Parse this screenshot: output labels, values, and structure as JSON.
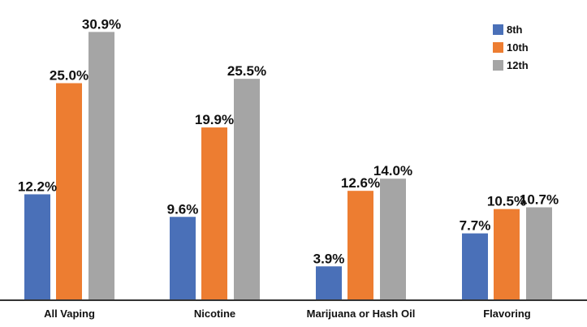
{
  "chart_data": {
    "type": "bar",
    "categories": [
      "All Vaping",
      "Nicotine",
      "Marijuana or Hash Oil",
      "Flavoring"
    ],
    "series": [
      {
        "name": "8th",
        "values": [
          12.2,
          9.6,
          3.9,
          7.7
        ],
        "color": "#4a70b8"
      },
      {
        "name": "10th",
        "values": [
          25.0,
          19.9,
          12.6,
          10.5
        ],
        "color": "#ed7d31"
      },
      {
        "name": "12th",
        "values": [
          30.9,
          25.5,
          14.0,
          10.7
        ],
        "color": "#a5a5a5"
      }
    ],
    "ylim": [
      0,
      32
    ],
    "value_suffix": "%",
    "grid": false,
    "legend": "top-right"
  }
}
